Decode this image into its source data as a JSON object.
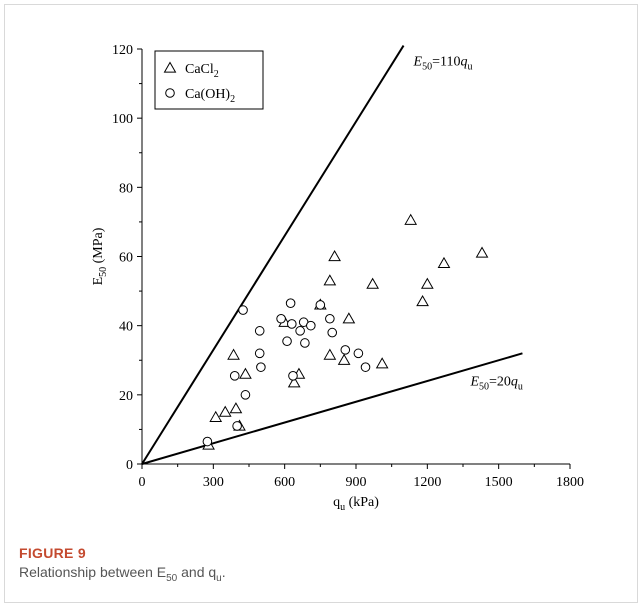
{
  "chart_data": {
    "type": "scatter",
    "xlabel": "q",
    "xlabel_sub": "u",
    "xlabel_unit": " (kPa)",
    "ylabel": "E",
    "ylabel_sub": "50",
    "ylabel_unit": " (MPa)",
    "xlim": [
      0,
      1800
    ],
    "ylim": [
      0,
      120
    ],
    "xticks": [
      0,
      300,
      600,
      900,
      1200,
      1500,
      1800
    ],
    "yticks": [
      0,
      20,
      40,
      60,
      80,
      100,
      120
    ],
    "legend_position": "top-left",
    "series": [
      {
        "name": "CaCl",
        "name_sub": "2",
        "marker": "triangle",
        "points": [
          [
            280,
            5.5
          ],
          [
            310,
            13.5
          ],
          [
            350,
            15
          ],
          [
            385,
            31.5
          ],
          [
            395,
            16
          ],
          [
            410,
            11
          ],
          [
            435,
            26
          ],
          [
            600,
            41
          ],
          [
            640,
            23.5
          ],
          [
            660,
            26
          ],
          [
            750,
            46
          ],
          [
            790,
            53
          ],
          [
            790,
            31.5
          ],
          [
            810,
            60
          ],
          [
            850,
            30
          ],
          [
            870,
            42
          ],
          [
            970,
            52
          ],
          [
            1010,
            29
          ],
          [
            1130,
            70.5
          ],
          [
            1180,
            47
          ],
          [
            1200,
            52
          ],
          [
            1270,
            58
          ],
          [
            1430,
            61
          ]
        ]
      },
      {
        "name": "Ca(OH)",
        "name_sub": "2",
        "marker": "circle",
        "points": [
          [
            275,
            6.5
          ],
          [
            390,
            25.5
          ],
          [
            400,
            11
          ],
          [
            425,
            44.5
          ],
          [
            435,
            20
          ],
          [
            495,
            38.5
          ],
          [
            495,
            32
          ],
          [
            500,
            28
          ],
          [
            585,
            42
          ],
          [
            610,
            35.5
          ],
          [
            625,
            46.5
          ],
          [
            630,
            40.5
          ],
          [
            635,
            25.5
          ],
          [
            665,
            38.5
          ],
          [
            680,
            41
          ],
          [
            685,
            35
          ],
          [
            710,
            40
          ],
          [
            750,
            46
          ],
          [
            790,
            42
          ],
          [
            800,
            38
          ],
          [
            855,
            33
          ],
          [
            910,
            32
          ],
          [
            940,
            28
          ]
        ]
      }
    ],
    "reference_lines": [
      {
        "label_prefix": "E",
        "label_sub": "50",
        "label_rest": "=110",
        "label_var": "q",
        "label_var_sub": "u",
        "slope": 0.11,
        "x_end": 1100
      },
      {
        "label_prefix": "E",
        "label_sub": "50",
        "label_rest": "=20",
        "label_var": "q",
        "label_var_sub": "u",
        "slope": 0.02,
        "x_end": 1600
      }
    ]
  },
  "caption": {
    "label": "FIGURE 9",
    "text_before": "Relationship between E",
    "text_sub1": "50",
    "text_mid": " and q",
    "text_sub2": "u",
    "text_after": "."
  }
}
